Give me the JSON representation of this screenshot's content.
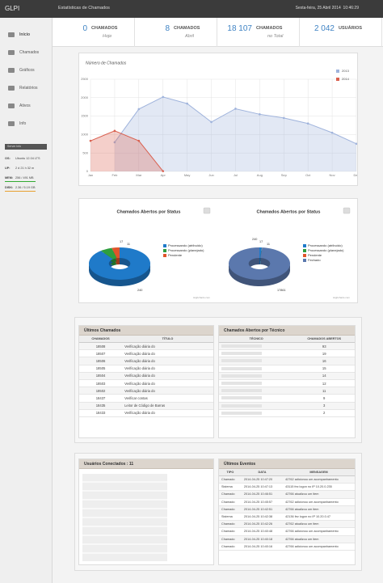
{
  "header": {
    "brand": "GLPI",
    "title": "Estatísticas de Chamados",
    "datetime": "Sexta-feira, 25 Abril 2014  10:46:29"
  },
  "menu": [
    "Início",
    "Chamados",
    "Gráficos",
    "Relatórios",
    "Ativos",
    "Info"
  ],
  "server_info": {
    "title": "Server Info",
    "rows": [
      [
        "OS:",
        "Ubuntu 12.04 LTS"
      ],
      [
        "UP:",
        "2 d 21 h 32 m"
      ],
      [
        "MEM:",
        "256 / 491 MB"
      ],
      [
        "DISK:",
        "2.36 / 5.19 GB"
      ]
    ]
  },
  "stats": [
    {
      "value": "0",
      "label": "CHAMADOS",
      "sub": "Hoje"
    },
    {
      "value": "8",
      "label": "CHAMADOS",
      "sub": "Abril"
    },
    {
      "value": "18 107",
      "label": "CHAMADOS",
      "sub": "no Total"
    },
    {
      "value": "2 042",
      "label": "USUÁRIOS"
    }
  ],
  "chart_data": [
    {
      "type": "line",
      "title": "Número de Chamados",
      "categories": [
        "Jan",
        "Feb",
        "Mar",
        "Apr",
        "May",
        "Jun",
        "Jul",
        "Aug",
        "Sep",
        "Oct",
        "Nov",
        "Dec"
      ],
      "series": [
        {
          "name": "2013",
          "color": "#9fb3dc",
          "values": [
            null,
            790,
            1690,
            2020,
            1840,
            1340,
            1700,
            1550,
            1450,
            1300,
            1050,
            750
          ]
        },
        {
          "name": "2014",
          "color": "#d9604f",
          "values": [
            830,
            1100,
            830,
            8,
            null,
            null,
            null,
            null,
            null,
            null,
            null,
            null
          ]
        }
      ],
      "ylim": [
        0,
        2500
      ],
      "yticks": [
        0,
        500,
        1000,
        1500,
        2000,
        2500
      ],
      "grid": true,
      "legend": "top-right",
      "area": true
    },
    {
      "type": "pie",
      "title": "Chamados Abertos por Status",
      "categories": [
        "Processando (atribuído)",
        "Processando (planejado)",
        "Pendente"
      ],
      "values": [
        240,
        17,
        11
      ],
      "colors": [
        "#1f7ac9",
        "#2e9e3e",
        "#e0542b"
      ],
      "credit": "Highcharts.com"
    },
    {
      "type": "pie",
      "title": "Chamados Abertos por Status",
      "categories": [
        "Processando (atribuído)",
        "Processando (planejado)",
        "Pendente",
        "Fechado"
      ],
      "values": [
        240,
        17,
        11,
        17861
      ],
      "colors": [
        "#1f7ac9",
        "#2e9e3e",
        "#e0542b",
        "#5b78ad"
      ],
      "credit": "Highcharts.com"
    }
  ],
  "tickets": {
    "title": "Últimos Chamados",
    "columns": [
      "CHAMADOS",
      "TÍTULO"
    ],
    "rows": [
      [
        "18508",
        "Verificação diária do"
      ],
      [
        "18507",
        "Verificação diária do"
      ],
      [
        "18506",
        "Verificação diária do"
      ],
      [
        "18505",
        "Verificação diária do"
      ],
      [
        "18504",
        "Verificação diária do"
      ],
      [
        "18503",
        "Verificação diária do"
      ],
      [
        "18502",
        "Verificação diária do"
      ],
      [
        "18437",
        "Verificar contas"
      ],
      [
        "18435",
        "Leitor de Código de Barras"
      ],
      [
        "18433",
        "Verificação diária do"
      ]
    ]
  },
  "technicians": {
    "title": "Chamados Abertos por Técnico",
    "columns": [
      "TÉCNICO",
      "CHAMADOS ABERTOS"
    ],
    "counts": [
      "93",
      "19",
      "16",
      "15",
      "14",
      "12",
      "11",
      "9",
      "3",
      "2"
    ]
  },
  "users": {
    "title": "Usuários Conectados : 11"
  },
  "events": {
    "title": "Últimos Eventos",
    "columns": [
      "TIPO",
      "DATA",
      "MENSAGEM"
    ],
    "rows": [
      [
        "Chamado",
        "2014-04-25 10:47:20",
        "42762 adicionou um acompanhamento"
      ],
      [
        "Sistema",
        "2014-04-25 10:47:13",
        "43115 fez logon no IP 10.20.0.235"
      ],
      [
        "Chamado",
        "2014-04-25 10:46:51",
        "42766 atualizou um item"
      ],
      [
        "Chamado",
        "2014-04-25 10:45:57",
        "42762 adicionou um acompanhamento"
      ],
      [
        "Chamado",
        "2014-04-25 10:42:51",
        "42766 atualizou um item"
      ],
      [
        "Sistema",
        "2014-04-25 10:42:38",
        "42136 fez logon no IP 10.20.0.47"
      ],
      [
        "Chamado",
        "2014-04-25 10:42:26",
        "42762 atualizou um item"
      ],
      [
        "Chamado",
        "2014-04-25 10:40:48",
        "42766 adicionou um acompanhamento"
      ],
      [
        "Chamado",
        "2014-04-25 10:40:18",
        "42766 atualizou um item"
      ],
      [
        "Chamado",
        "2014-04-25 10:40:16",
        "42766 adicionou um acompanhamento"
      ]
    ]
  }
}
